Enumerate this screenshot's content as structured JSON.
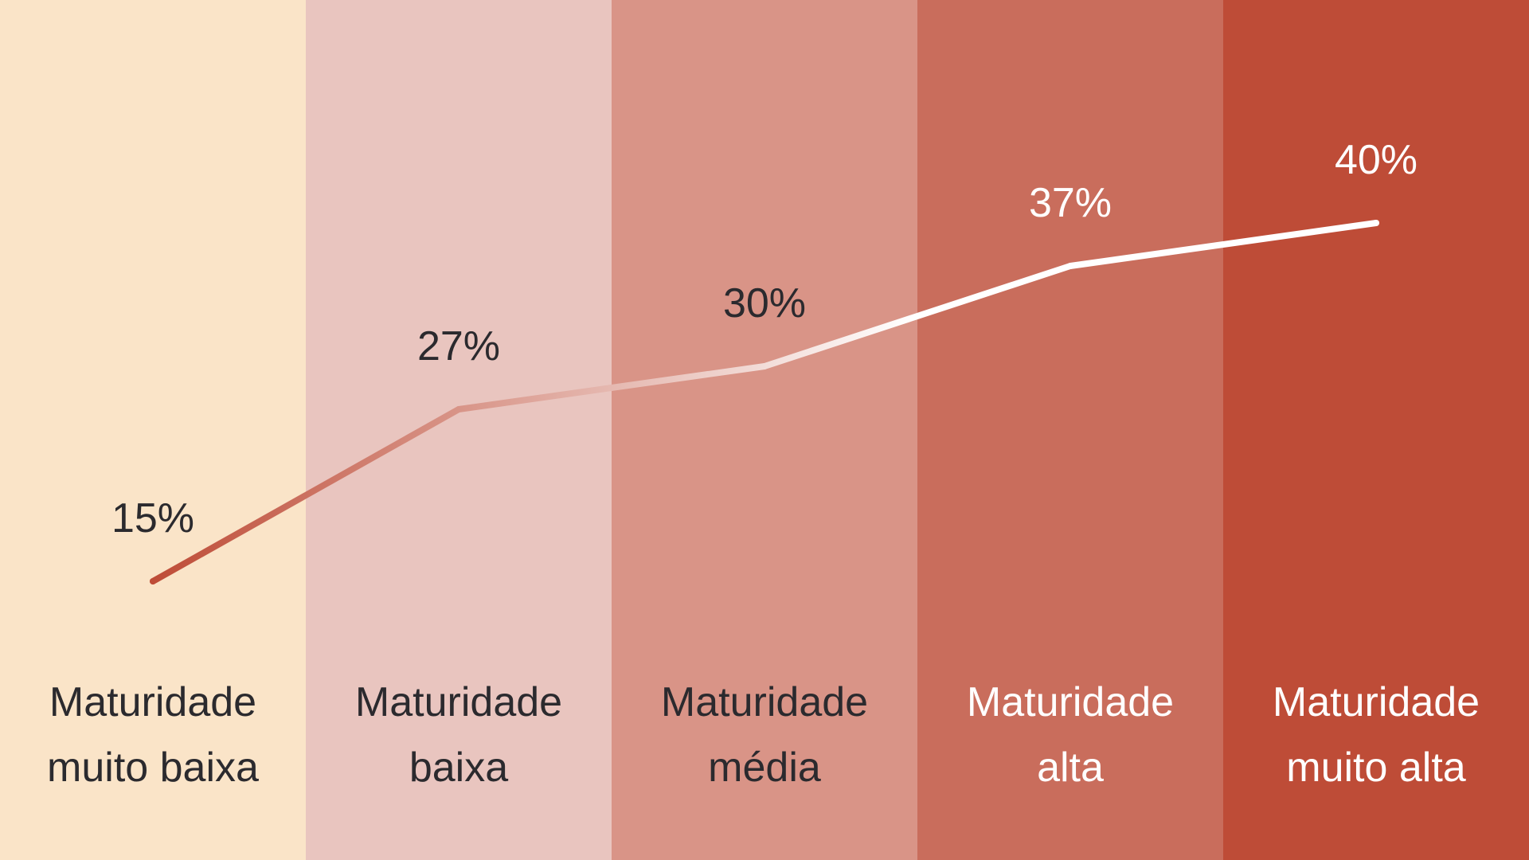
{
  "chart_data": {
    "type": "line",
    "title": "",
    "xlabel": "",
    "ylabel": "",
    "ylim": [
      0,
      50
    ],
    "grid": false,
    "legend": "none",
    "unit": "%",
    "categories": [
      [
        "Maturidade",
        "muito baixa"
      ],
      [
        "Maturidade",
        "baixa"
      ],
      [
        "Maturidade",
        "média"
      ],
      [
        "Maturidade",
        "alta"
      ],
      [
        "Maturidade",
        "muito alta"
      ]
    ],
    "values": [
      15,
      27,
      30,
      37,
      40
    ],
    "value_labels": [
      "15%",
      "27%",
      "30%",
      "37%",
      "40%"
    ],
    "band_colors": [
      "#FAE4C8",
      "#E9C5BF",
      "#D99487",
      "#C96D5C",
      "#BE4C37"
    ],
    "label_colors": [
      "#2B2A2E",
      "#2B2A2E",
      "#2B2A2E",
      "#FFFFFF",
      "#FFFFFF"
    ],
    "line_gradient": [
      "#BE4C37",
      "#FFFFFF"
    ]
  }
}
